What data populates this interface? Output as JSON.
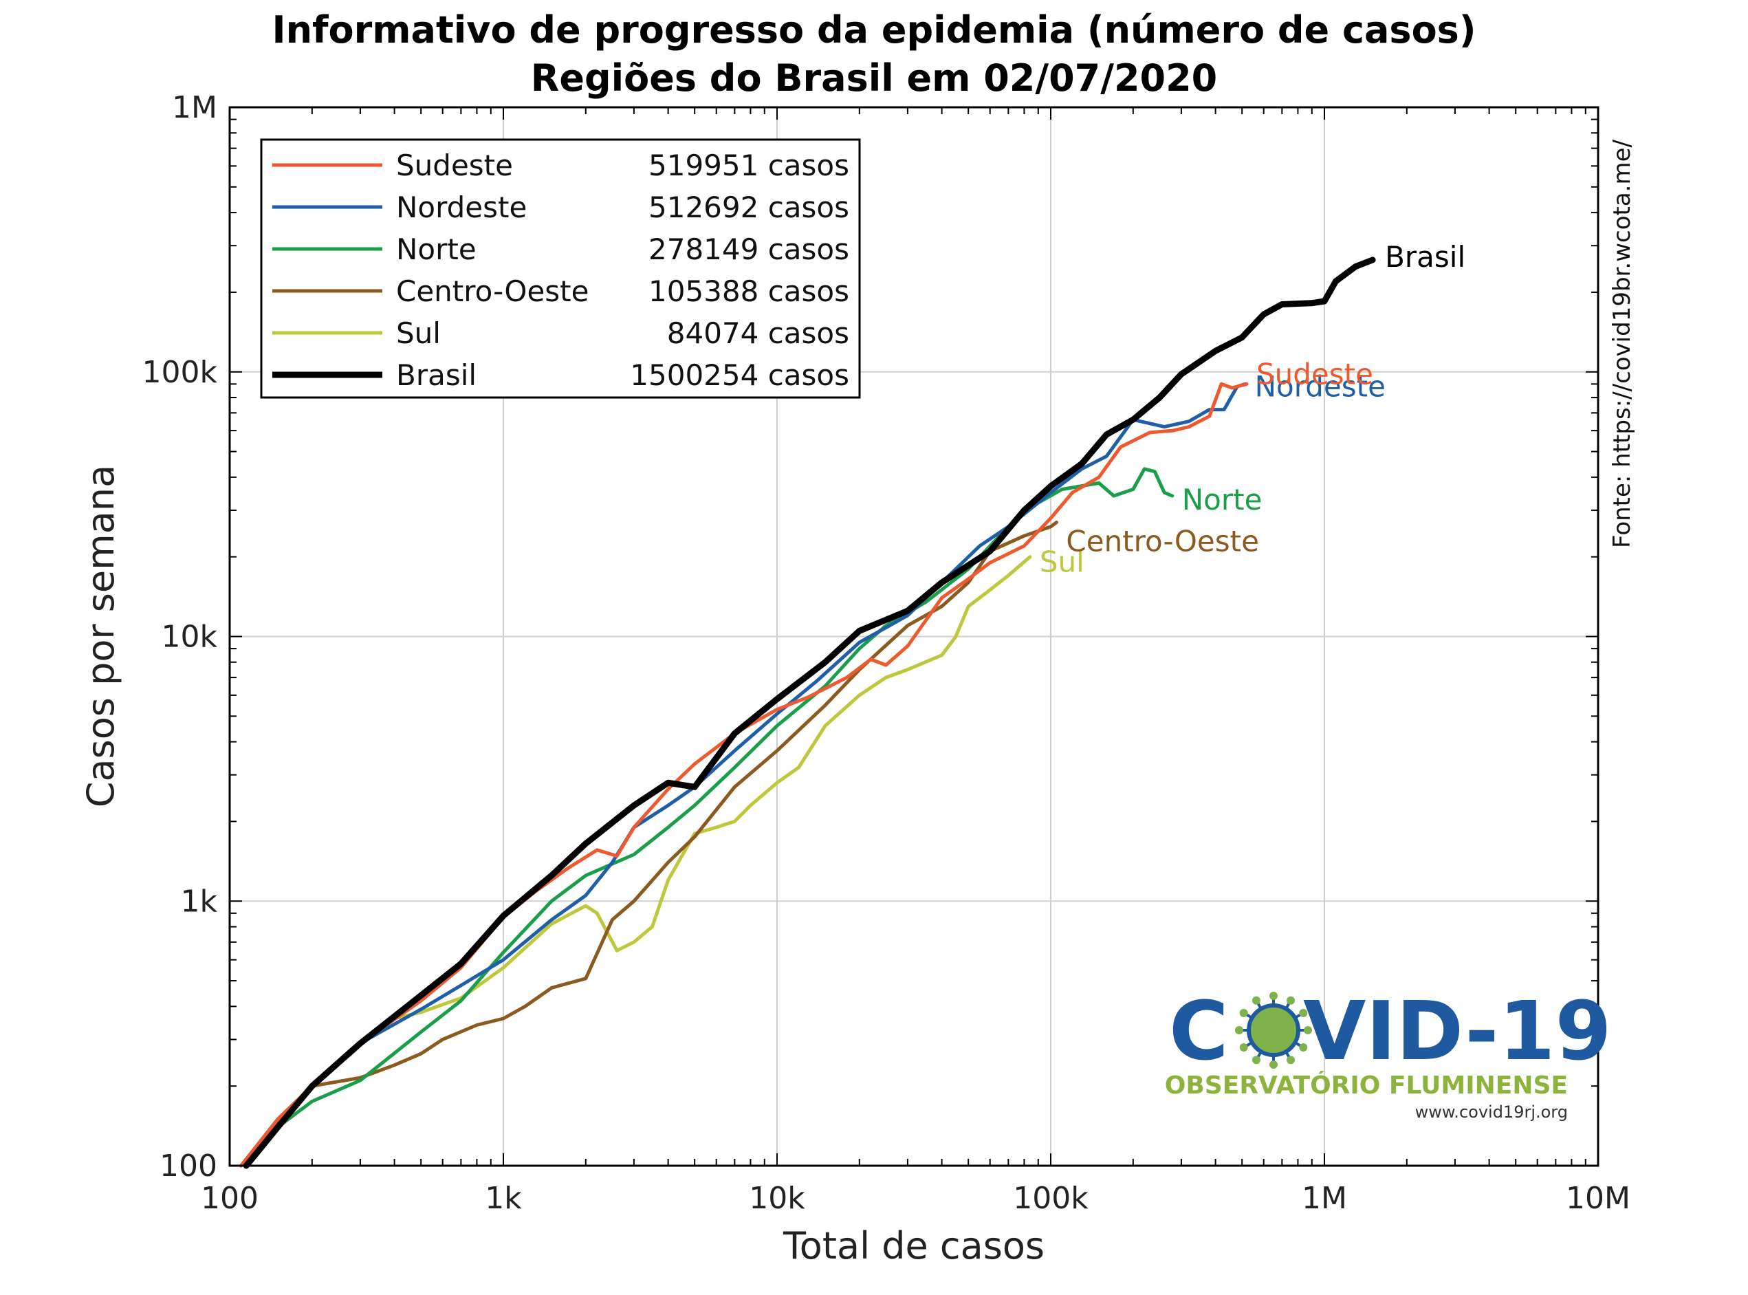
{
  "title_line1": "Informativo de progresso da epidemia (número de casos)",
  "title_line2": "Regiões do Brasil em 02/07/2020",
  "source": "Fonte: https://covid19br.wcota.me/",
  "logo": {
    "text": "COVID-19",
    "subtitle": "OBSERVATÓRIO FLUMINENSE",
    "url": "www.covid19rj.org",
    "colors": {
      "main": "#1f5aa0",
      "sub": "#8cb43c",
      "virus": "#7fb24a"
    }
  },
  "chart_data": {
    "type": "line",
    "x_scale": "log",
    "y_scale": "log",
    "xlabel": "Total de casos",
    "ylabel": "Casos por semana",
    "xlim": [
      100,
      10000000
    ],
    "ylim": [
      100,
      1000000
    ],
    "x_ticks": [
      {
        "value": 100,
        "label": "100"
      },
      {
        "value": 1000,
        "label": "1k"
      },
      {
        "value": 10000,
        "label": "10k"
      },
      {
        "value": 100000,
        "label": "100k"
      },
      {
        "value": 1000000,
        "label": "1M"
      },
      {
        "value": 10000000,
        "label": "10M"
      }
    ],
    "y_ticks": [
      {
        "value": 100,
        "label": "100"
      },
      {
        "value": 1000,
        "label": "1k"
      },
      {
        "value": 10000,
        "label": "10k"
      },
      {
        "value": 100000,
        "label": "100k"
      },
      {
        "value": 1000000,
        "label": "1M"
      }
    ],
    "grid": true,
    "legend_position": "top-left",
    "series": [
      {
        "name": "Sudeste",
        "cases_label": "519951 casos",
        "end_label": "Sudeste",
        "color": "#ee5a30",
        "points": [
          [
            110,
            100
          ],
          [
            150,
            150
          ],
          [
            200,
            200
          ],
          [
            300,
            290
          ],
          [
            500,
            420
          ],
          [
            700,
            560
          ],
          [
            1000,
            870
          ],
          [
            1300,
            1080
          ],
          [
            1700,
            1320
          ],
          [
            2200,
            1560
          ],
          [
            2600,
            1480
          ],
          [
            3000,
            1900
          ],
          [
            4000,
            2650
          ],
          [
            5000,
            3300
          ],
          [
            7000,
            4300
          ],
          [
            10000,
            5300
          ],
          [
            13000,
            5900
          ],
          [
            18000,
            7000
          ],
          [
            22000,
            8200
          ],
          [
            25000,
            7800
          ],
          [
            30000,
            9200
          ],
          [
            40000,
            14000
          ],
          [
            50000,
            16500
          ],
          [
            60000,
            19000
          ],
          [
            80000,
            22000
          ],
          [
            100000,
            28000
          ],
          [
            120000,
            35000
          ],
          [
            150000,
            40000
          ],
          [
            180000,
            52000
          ],
          [
            230000,
            59000
          ],
          [
            280000,
            60000
          ],
          [
            320000,
            62000
          ],
          [
            380000,
            68000
          ],
          [
            420000,
            90000
          ],
          [
            460000,
            87000
          ],
          [
            520000,
            90000
          ]
        ]
      },
      {
        "name": "Nordeste",
        "cases_label": "512692 casos",
        "end_label": "Nordeste",
        "color": "#1f5fa8",
        "points": [
          [
            110,
            100
          ],
          [
            150,
            150
          ],
          [
            200,
            200
          ],
          [
            300,
            290
          ],
          [
            500,
            390
          ],
          [
            700,
            480
          ],
          [
            1000,
            600
          ],
          [
            1500,
            850
          ],
          [
            2000,
            1050
          ],
          [
            2500,
            1400
          ],
          [
            3000,
            1900
          ],
          [
            4000,
            2300
          ],
          [
            5000,
            2700
          ],
          [
            7000,
            3700
          ],
          [
            10000,
            5100
          ],
          [
            14000,
            6800
          ],
          [
            20000,
            9500
          ],
          [
            30000,
            12000
          ],
          [
            40000,
            16000
          ],
          [
            55000,
            22000
          ],
          [
            70000,
            26000
          ],
          [
            100000,
            35000
          ],
          [
            130000,
            43000
          ],
          [
            160000,
            48000
          ],
          [
            200000,
            66000
          ],
          [
            260000,
            62000
          ],
          [
            320000,
            65000
          ],
          [
            380000,
            72000
          ],
          [
            430000,
            72000
          ],
          [
            480000,
            88000
          ],
          [
            513000,
            90000
          ]
        ]
      },
      {
        "name": "Norte",
        "cases_label": "278149 casos",
        "end_label": "Norte",
        "color": "#1a9e4a",
        "points": [
          [
            110,
            100
          ],
          [
            150,
            140
          ],
          [
            200,
            175
          ],
          [
            300,
            210
          ],
          [
            500,
            320
          ],
          [
            700,
            420
          ],
          [
            1000,
            640
          ],
          [
            1500,
            1000
          ],
          [
            2000,
            1250
          ],
          [
            3000,
            1500
          ],
          [
            4000,
            1900
          ],
          [
            5000,
            2300
          ],
          [
            7000,
            3200
          ],
          [
            10000,
            4600
          ],
          [
            15000,
            6500
          ],
          [
            20000,
            9000
          ],
          [
            25000,
            11000
          ],
          [
            35000,
            13500
          ],
          [
            50000,
            18000
          ],
          [
            70000,
            26000
          ],
          [
            90000,
            32000
          ],
          [
            110000,
            36000
          ],
          [
            150000,
            38000
          ],
          [
            170000,
            34000
          ],
          [
            200000,
            36000
          ],
          [
            220000,
            43000
          ],
          [
            240000,
            42000
          ],
          [
            260000,
            35000
          ],
          [
            278000,
            34000
          ]
        ]
      },
      {
        "name": "Centro-Oeste",
        "cases_label": "105388 casos",
        "end_label": "Centro-Oeste",
        "color": "#8b5a1e",
        "points": [
          [
            110,
            100
          ],
          [
            200,
            200
          ],
          [
            300,
            215
          ],
          [
            400,
            240
          ],
          [
            500,
            265
          ],
          [
            600,
            300
          ],
          [
            800,
            340
          ],
          [
            1000,
            360
          ],
          [
            1200,
            400
          ],
          [
            1500,
            470
          ],
          [
            2000,
            510
          ],
          [
            2500,
            850
          ],
          [
            3000,
            1000
          ],
          [
            4000,
            1400
          ],
          [
            5000,
            1750
          ],
          [
            7000,
            2700
          ],
          [
            10000,
            3700
          ],
          [
            15000,
            5500
          ],
          [
            20000,
            7500
          ],
          [
            30000,
            11000
          ],
          [
            40000,
            13000
          ],
          [
            50000,
            16000
          ],
          [
            60000,
            21000
          ],
          [
            80000,
            24000
          ],
          [
            100000,
            26000
          ],
          [
            105000,
            27000
          ]
        ]
      },
      {
        "name": "Sul",
        "cases_label": "84074 casos",
        "end_label": "Sul",
        "color": "#bfc83c",
        "points": [
          [
            110,
            100
          ],
          [
            200,
            200
          ],
          [
            300,
            290
          ],
          [
            400,
            360
          ],
          [
            500,
            380
          ],
          [
            700,
            430
          ],
          [
            1000,
            560
          ],
          [
            1500,
            820
          ],
          [
            2000,
            960
          ],
          [
            2200,
            900
          ],
          [
            2600,
            650
          ],
          [
            3000,
            700
          ],
          [
            3500,
            800
          ],
          [
            4000,
            1200
          ],
          [
            5000,
            1800
          ],
          [
            6000,
            1900
          ],
          [
            7000,
            2000
          ],
          [
            8000,
            2300
          ],
          [
            10000,
            2800
          ],
          [
            12000,
            3200
          ],
          [
            15000,
            4600
          ],
          [
            20000,
            6000
          ],
          [
            25000,
            7000
          ],
          [
            30000,
            7500
          ],
          [
            40000,
            8500
          ],
          [
            45000,
            10000
          ],
          [
            50000,
            13000
          ],
          [
            60000,
            15000
          ],
          [
            70000,
            17000
          ],
          [
            84000,
            20000
          ]
        ]
      },
      {
        "name": "Brasil",
        "cases_label": "1500254 casos",
        "end_label": "Brasil",
        "color": "#000000",
        "points": [
          [
            115,
            100
          ],
          [
            150,
            140
          ],
          [
            200,
            200
          ],
          [
            300,
            290
          ],
          [
            500,
            440
          ],
          [
            700,
            580
          ],
          [
            1000,
            880
          ],
          [
            1500,
            1250
          ],
          [
            2000,
            1650
          ],
          [
            3000,
            2300
          ],
          [
            4000,
            2800
          ],
          [
            5000,
            2700
          ],
          [
            7000,
            4300
          ],
          [
            10000,
            5800
          ],
          [
            15000,
            8000
          ],
          [
            20000,
            10500
          ],
          [
            30000,
            12500
          ],
          [
            40000,
            16000
          ],
          [
            60000,
            21000
          ],
          [
            80000,
            30000
          ],
          [
            100000,
            37000
          ],
          [
            130000,
            45000
          ],
          [
            160000,
            58000
          ],
          [
            200000,
            66000
          ],
          [
            250000,
            80000
          ],
          [
            300000,
            98000
          ],
          [
            400000,
            120000
          ],
          [
            500000,
            135000
          ],
          [
            600000,
            165000
          ],
          [
            700000,
            180000
          ],
          [
            900000,
            182000
          ],
          [
            1000000,
            185000
          ],
          [
            1100000,
            220000
          ],
          [
            1300000,
            250000
          ],
          [
            1500000,
            265000
          ]
        ]
      }
    ]
  }
}
